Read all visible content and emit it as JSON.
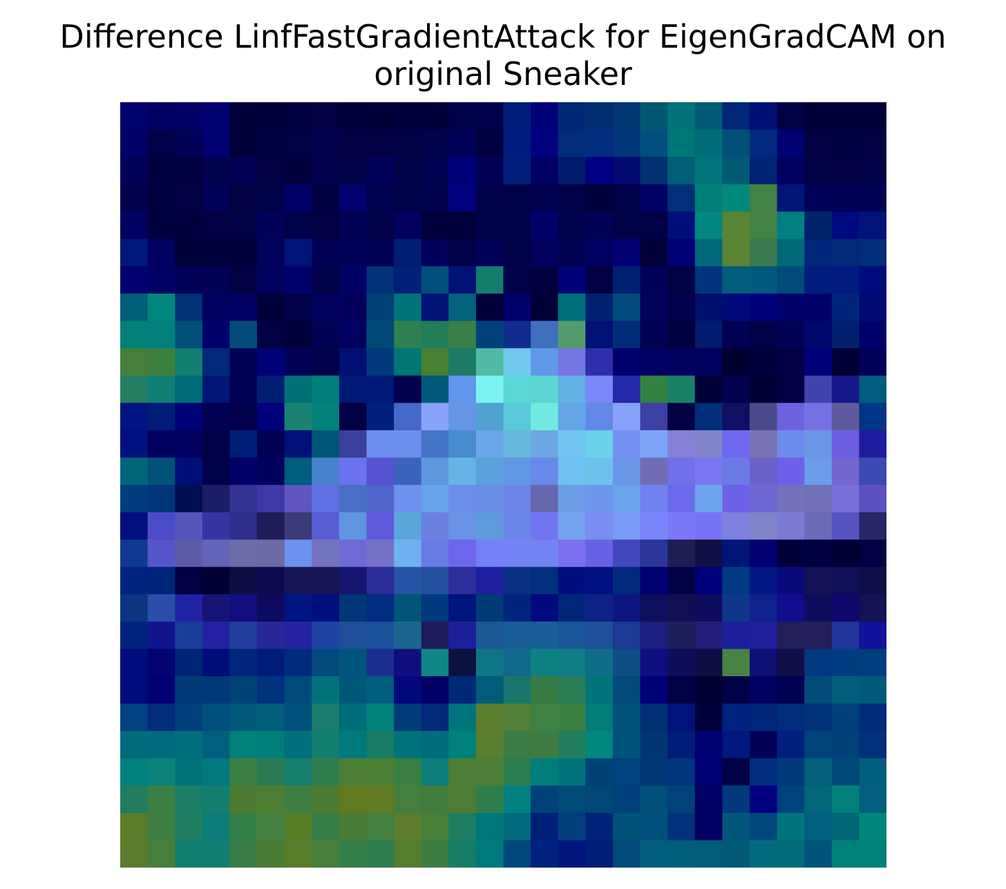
{
  "chart_data": {
    "type": "heatmap",
    "title": "Difference LinfFastGradientAttack for EigenGradCAM on original Sneaker",
    "title_lines": [
      "Difference LinfFastGradientAttack for EigenGradCAM on",
      "original Sneaker"
    ],
    "axes_visible": false,
    "grid": false,
    "rows": 28,
    "cols": 28,
    "cells": [
      [
        "#00006f",
        "#000063",
        "#000066",
        "#000072",
        "#000036",
        "#00003b",
        "#000040",
        "#000042",
        "#00003a",
        "#000035",
        "#00003a",
        "#000039",
        "#000048",
        "#00004c",
        "#001c7a",
        "#000077",
        "#002874",
        "#002d71",
        "#003672",
        "#005971",
        "#007278",
        "#005b76",
        "#002778",
        "#000e76",
        "#000044",
        "#000038",
        "#000036",
        "#000036"
      ],
      [
        "#000069",
        "#000048",
        "#000056",
        "#000073",
        "#000039",
        "#000041",
        "#000045",
        "#00004d",
        "#000043",
        "#000043",
        "#000044",
        "#00004b",
        "#00005a",
        "#000040",
        "#001c81",
        "#000080",
        "#002c79",
        "#002d7f",
        "#00367b",
        "#004f7e",
        "#007777",
        "#006d78",
        "#005078",
        "#00297d",
        "#000073",
        "#000042",
        "#000041",
        "#000043"
      ],
      [
        "#000058",
        "#000041",
        "#000041",
        "#00004e",
        "#000055",
        "#000043",
        "#00003d",
        "#00004c",
        "#000048",
        "#00005b",
        "#000047",
        "#000051",
        "#00007b",
        "#000055",
        "#001f7b",
        "#000062",
        "#001b6a",
        "#000080",
        "#000a6f",
        "#00306f",
        "#005f76",
        "#00757a",
        "#005a74",
        "#002373",
        "#00005f",
        "#000044",
        "#000043",
        "#000046"
      ],
      [
        "#00004c",
        "#00003e",
        "#000043",
        "#000059",
        "#000043",
        "#000049",
        "#000068",
        "#000041",
        "#000070",
        "#000050",
        "#000048",
        "#00004c",
        "#000081",
        "#00004a",
        "#000048",
        "#000050",
        "#000048",
        "#00003b",
        "#000047",
        "#000066",
        "#003078",
        "#007e77",
        "#008a7b",
        "#428243",
        "#001576",
        "#000058",
        "#000055",
        "#000055"
      ],
      [
        "#000061",
        "#00003f",
        "#00003d",
        "#000042",
        "#000045",
        "#00005b",
        "#000048",
        "#000043",
        "#000056",
        "#000049",
        "#000060",
        "#00003a",
        "#000038",
        "#000048",
        "#000048",
        "#000068",
        "#00004f",
        "#000057",
        "#000047",
        "#000046",
        "#000e7b",
        "#008781",
        "#5a8334",
        "#418245",
        "#007f80",
        "#00236e",
        "#00087f",
        "#001379"
      ],
      [
        "#00187b",
        "#000061",
        "#000038",
        "#00003b",
        "#00003b",
        "#00005d",
        "#001478",
        "#000056",
        "#000058",
        "#000057",
        "#001e71",
        "#00005c",
        "#000049",
        "#000059",
        "#000047",
        "#00005f",
        "#000052",
        "#000063",
        "#000072",
        "#000036",
        "#000075",
        "#00687a",
        "#5b8435",
        "#3b7951",
        "#006877",
        "#00257b",
        "#002a76",
        "#002e78"
      ],
      [
        "#000070",
        "#000064",
        "#000059",
        "#000055",
        "#000043",
        "#00005d",
        "#00006c",
        "#00004b",
        "#000067",
        "#003377",
        "#002177",
        "#004f7a",
        "#001175",
        "#147c6d",
        "#000048",
        "#00003e",
        "#000079",
        "#000042",
        "#002073",
        "#000059",
        "#000044",
        "#00337a",
        "#005d79",
        "#005a7e",
        "#004b78",
        "#001c7d",
        "#001a7e",
        "#000b7b"
      ],
      [
        "#005d78",
        "#00877d",
        "#003177",
        "#000061",
        "#000062",
        "#000039",
        "#000048",
        "#00005f",
        "#00005c",
        "#004077",
        "#007379",
        "#001177",
        "#00627b",
        "#000039",
        "#00006d",
        "#000039",
        "#006f79",
        "#002071",
        "#004b7c",
        "#00005d",
        "#00004c",
        "#000f6e",
        "#000a7a",
        "#00007b",
        "#00006d",
        "#000068",
        "#002479",
        "#000a73"
      ],
      [
        "#008079",
        "#007f7d",
        "#005079",
        "#00006d",
        "#004b79",
        "#000043",
        "#00003a",
        "#000054",
        "#000061",
        "#004876",
        "#2e8050",
        "#227e57",
        "#3a7f45",
        "#00417c",
        "#0f2b8d",
        "#406fbd",
        "#539b6d",
        "#001176",
        "#002b76",
        "#000055",
        "#00003f",
        "#001a6e",
        "#000055",
        "#000046",
        "#000056",
        "#00086c",
        "#00206f",
        "#00006a"
      ],
      [
        "#457f39",
        "#3c813e",
        "#127e70",
        "#00297b",
        "#000056",
        "#000077",
        "#000057",
        "#00004c",
        "#001072",
        "#00397b",
        "#007675",
        "#477f33",
        "#1c7a64",
        "#52baa2",
        "#71c8ee",
        "#6098e7",
        "#7576e3",
        "#2c2eab",
        "#00006c",
        "#000063",
        "#00005f",
        "#00005f",
        "#000030",
        "#00003d",
        "#000043",
        "#00007a",
        "#000035",
        "#000058"
      ],
      [
        "#247e62",
        "#0f7e73",
        "#006b79",
        "#001676",
        "#000057",
        "#001f74",
        "#007177",
        "#007e7b",
        "#001976",
        "#001a79",
        "#00004c",
        "#005a7c",
        "#6295ec",
        "#7cf3f3",
        "#5ad8d8",
        "#5cd6d3",
        "#62b1e3",
        "#7b87f7",
        "#2428a8",
        "#358141",
        "#197f67",
        "#000038",
        "#00004e",
        "#000033",
        "#000043",
        "#4043ad",
        "#17188b",
        "#005c7e"
      ],
      [
        "#001481",
        "#001b78",
        "#000078",
        "#000054",
        "#00004c",
        "#00007f",
        "#1a8370",
        "#00827b",
        "#000043",
        "#00207b",
        "#4567c8",
        "#87a4f9",
        "#6695e4",
        "#51a1d1",
        "#5ac9da",
        "#70eae2",
        "#64a5e8",
        "#6388e8",
        "#87a2fa",
        "#3f3ea5",
        "#000043",
        "#002e79",
        "#101063",
        "#4a4a8b",
        "#6d63e1",
        "#7770e5",
        "#5d5b9d",
        "#003687"
      ],
      [
        "#000f7e",
        "#000060",
        "#000060",
        "#000049",
        "#001e78",
        "#000055",
        "#000f7a",
        "#005676",
        "#3c3f9b",
        "#6e8df0",
        "#6c8fee",
        "#4575c6",
        "#478ccc",
        "#6aa6ec",
        "#66b9dd",
        "#6ca7e4",
        "#71c4f1",
        "#6bd2ea",
        "#7592f3",
        "#7da6f8",
        "#8581d6",
        "#8184c8",
        "#6f67f1",
        "#7872b3",
        "#6b8cec",
        "#6a97e6",
        "#6c5fe4",
        "#1e1c9c"
      ],
      [
        "#00657b",
        "#005278",
        "#000e7a",
        "#00004a",
        "#000068",
        "#00005c",
        "#005d7c",
        "#4581cc",
        "#6a72ed",
        "#5652d1",
        "#3b62bd",
        "#5f97dc",
        "#66b3e8",
        "#5ba1dd",
        "#6197e3",
        "#6789ea",
        "#6ec2f1",
        "#6dc1ea",
        "#6a97e7",
        "#716db5",
        "#7170e8",
        "#7a77f2",
        "#6b7ae5",
        "#6a62c9",
        "#6e60eb",
        "#6b9deb",
        "#7366cf",
        "#3b4ab5"
      ],
      [
        "#003d7c",
        "#003579",
        "#000d51",
        "#1b1d69",
        "#343392",
        "#3c39a6",
        "#6155c0",
        "#5d6fe1",
        "#4870c7",
        "#5166cd",
        "#6e91ef",
        "#67a3ea",
        "#6d8deb",
        "#6b8ee4",
        "#6d84e7",
        "#6667ae",
        "#6d9de6",
        "#6c97ec",
        "#6ba4eb",
        "#7281f2",
        "#6b6aea",
        "#6ca4eb",
        "#6c61e7",
        "#6d68d4",
        "#7371ba",
        "#716fb8",
        "#786fd9",
        "#5a51bf"
      ],
      [
        "#000e7f",
        "#4a4bc8",
        "#5755b9",
        "#3534a2",
        "#2c2c8c",
        "#1e1d57",
        "#3a3b77",
        "#595cd4",
        "#5e96df",
        "#6158dd",
        "#5aa5da",
        "#6c80e0",
        "#6994e6",
        "#5f9adc",
        "#6b86ea",
        "#7275f3",
        "#72a3ed",
        "#7a8ef3",
        "#7a9bf7",
        "#7a85fb",
        "#7a78f8",
        "#7872f7",
        "#7d80dd",
        "#8182ca",
        "#7b7bd6",
        "#6a6cba",
        "#5654c3",
        "#272667"
      ],
      [
        "#0f3991",
        "#5654ca",
        "#5b5ba9",
        "#6363b8",
        "#6c6ca8",
        "#6d6ba4",
        "#6a92ee",
        "#7473c2",
        "#6f69d5",
        "#7472c7",
        "#6fb1ee",
        "#6a7be5",
        "#6e66eb",
        "#7580f6",
        "#7382f4",
        "#7483f2",
        "#7c6ff0",
        "#6761e3",
        "#4247bd",
        "#2b359a",
        "#1f1e54",
        "#101045",
        "#001575",
        "#000072",
        "#00003d",
        "#000041",
        "#000033",
        "#000043"
      ],
      [
        "#002380",
        "#002479",
        "#000043",
        "#000032",
        "#0f0e42",
        "#0d0c53",
        "#161655",
        "#141552",
        "#161671",
        "#2b2a99",
        "#2753a6",
        "#22509d",
        "#2c2c9a",
        "#1d1ea0",
        "#0a3081",
        "#00307d",
        "#000e7d",
        "#000f81",
        "#00287b",
        "#000073",
        "#000044",
        "#00007c",
        "#003a82",
        "#001883",
        "#08097a",
        "#131256",
        "#0f0f58",
        "#0e0e4b"
      ],
      [
        "#0a357f",
        "#2a4ea8",
        "#2023a5",
        "#161577",
        "#120e80",
        "#0e0b5e",
        "#00157f",
        "#000d7c",
        "#003675",
        "#002c7f",
        "#005578",
        "#00397e",
        "#00147d",
        "#003b77",
        "#00237c",
        "#00097e",
        "#002679",
        "#0f2187",
        "#0e1580",
        "#0f0d5e",
        "#0f0f52",
        "#0f0c5e",
        "#0f3787",
        "#0f218c",
        "#0f0d8d",
        "#0d0d5d",
        "#10086b",
        "#131252"
      ],
      [
        "#00227c",
        "#12148f",
        "#193e97",
        "#2421a2",
        "#213e9c",
        "#27279a",
        "#2422a0",
        "#1d44a5",
        "#1d4e9a",
        "#1a519a",
        "#1c6591",
        "#1e1c5b",
        "#1d1f9a",
        "#1a5894",
        "#195e97",
        "#1a5e98",
        "#195596",
        "#1d4f98",
        "#1b3a93",
        "#1c1d7e",
        "#1d1f5a",
        "#231d7a",
        "#1d1c9c",
        "#1f1f9a",
        "#221f59",
        "#231e59",
        "#21349a",
        "#11119b"
      ],
      [
        "#000b7d",
        "#000370",
        "#002475",
        "#000c78",
        "#00257b",
        "#001c78",
        "#002b7d",
        "#004a7c",
        "#00557c",
        "#1c2f91",
        "#0e0f7e",
        "#0d8684",
        "#0d1042",
        "#0e7582",
        "#0f6a8b",
        "#0d8082",
        "#0f7d84",
        "#0f6d8a",
        "#0d4e85",
        "#0e0e81",
        "#0d0d59",
        "#0f0d46",
        "#478345",
        "#0e0e74",
        "#0f0f4a",
        "#033882",
        "#003d80",
        "#003e7d"
      ],
      [
        "#000b7b",
        "#000072",
        "#003977",
        "#00397a",
        "#004178",
        "#00327f",
        "#004b7b",
        "#00727a",
        "#005878",
        "#005d7d",
        "#00087b",
        "#000066",
        "#002879",
        "#005c79",
        "#18756c",
        "#377a44",
        "#2a7d55",
        "#00737b",
        "#004978",
        "#000079",
        "#000044",
        "#000033",
        "#000046",
        "#000060",
        "#000052",
        "#004b77",
        "#005e7b",
        "#005b7a"
      ],
      [
        "#00417f",
        "#002c79",
        "#003f79",
        "#00507d",
        "#005a7b",
        "#005d7a",
        "#00527d",
        "#1a7c6a",
        "#006d7a",
        "#00827a",
        "#003c78",
        "#00287b",
        "#00757b",
        "#5b7e2f",
        "#538037",
        "#3d8143",
        "#3c8141",
        "#007c79",
        "#005278",
        "#003074",
        "#00127b",
        "#00003a",
        "#002280",
        "#002679",
        "#002c7e",
        "#00317b",
        "#003f7c",
        "#002a7b"
      ],
      [
        "#006b7b",
        "#006b7f",
        "#006f7c",
        "#005f7e",
        "#00807b",
        "#007e7b",
        "#00707d",
        "#127e6d",
        "#00797c",
        "#177c63",
        "#00727a",
        "#006d7c",
        "#00807a",
        "#587f30",
        "#3c7d47",
        "#407c41",
        "#237e60",
        "#00877f",
        "#00527a",
        "#003574",
        "#001d79",
        "#000072",
        "#00177e",
        "#000057",
        "#00207d",
        "#00427a",
        "#004179",
        "#003079"
      ],
      [
        "#008180",
        "#0a8179",
        "#00727a",
        "#00787d",
        "#3c7e43",
        "#2a7b53",
        "#157e6f",
        "#307e4e",
        "#4c7e34",
        "#4b7e35",
        "#3a8044",
        "#0c7d79",
        "#4d7e35",
        "#4c7e36",
        "#2b7e4f",
        "#007d7d",
        "#00737b",
        "#004276",
        "#00427d",
        "#003675",
        "#00357d",
        "#000074",
        "#000044",
        "#002c7d",
        "#003979",
        "#006079",
        "#004877",
        "#005d7b"
      ],
      [
        "#217c60",
        "#3c7f45",
        "#1d7e66",
        "#137d6e",
        "#4c7c32",
        "#4d7e31",
        "#3f7f44",
        "#4c7c32",
        "#607a20",
        "#607b24",
        "#447f40",
        "#427d3d",
        "#4d7d33",
        "#2f7d4d",
        "#00807f",
        "#004179",
        "#004a78",
        "#004677",
        "#003f7a",
        "#00507a",
        "#004279",
        "#000064",
        "#00397d",
        "#000081",
        "#00427d",
        "#006678",
        "#00807a",
        "#005f7c"
      ],
      [
        "#5a7c2b",
        "#3f7f41",
        "#1f7d62",
        "#0c7c79",
        "#357f48",
        "#437f3f",
        "#557e24",
        "#367e47",
        "#497c35",
        "#437f3f",
        "#5c7d2d",
        "#457f38",
        "#1d7d60",
        "#00777b",
        "#006c7b",
        "#00217a",
        "#003f7b",
        "#002278",
        "#005177",
        "#00507b",
        "#00317a",
        "#000063",
        "#005779",
        "#00477d",
        "#00747b",
        "#005e7f",
        "#006376",
        "#00857a"
      ],
      [
        "#5b7c2c",
        "#467f3c",
        "#117d71",
        "#107e71",
        "#387c46",
        "#4a7c36",
        "#577c2a",
        "#457f3b",
        "#347e4a",
        "#2e7d51",
        "#557d2c",
        "#3c7e42",
        "#167e65",
        "#00797c",
        "#00477b",
        "#00227e",
        "#00167d",
        "#001d78",
        "#004a79",
        "#005d7b",
        "#005e7b",
        "#005c78",
        "#005977",
        "#006c7b",
        "#006c78",
        "#005479",
        "#00807a",
        "#00807b"
      ]
    ]
  }
}
